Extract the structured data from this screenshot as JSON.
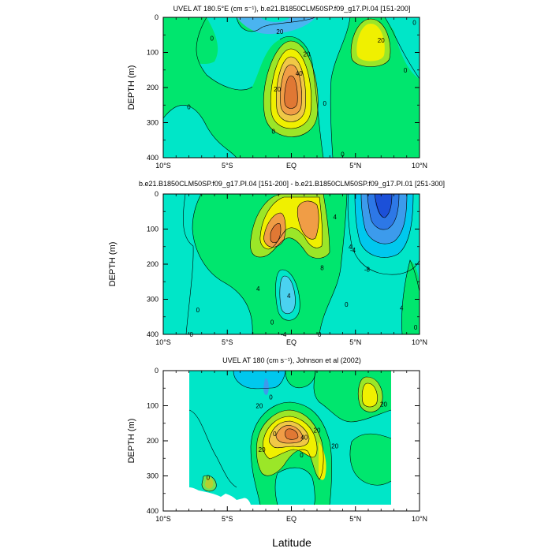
{
  "chart_data": [
    {
      "type": "contour",
      "title": "UVEL AT 180.5°E (cm s⁻¹), b.e21.B1850CLM50SP.f09_g17.PI.04 [151-200]",
      "xlabel": "",
      "ylabel": "DEPTH (m)",
      "xlim": [
        -10,
        10
      ],
      "ylim": [
        400,
        0
      ],
      "xticks": [
        -10,
        -5,
        0,
        5,
        10
      ],
      "xtick_labels": [
        "10°S",
        "5°S",
        "EQ",
        "5°N",
        "10°N"
      ],
      "yticks": [
        0,
        100,
        200,
        300,
        400
      ],
      "ytick_labels": [
        "0",
        "100",
        "200",
        "300",
        "400"
      ],
      "contour_labels": [
        {
          "text": "20",
          "x": -0.9,
          "y": 40
        },
        {
          "text": "0",
          "x": -6.2,
          "y": 60
        },
        {
          "text": "20",
          "x": 7.0,
          "y": 65
        },
        {
          "text": "20",
          "x": 1.2,
          "y": 105
        },
        {
          "text": "40",
          "x": 0.6,
          "y": 160
        },
        {
          "text": "20",
          "x": -1.1,
          "y": 205
        },
        {
          "text": "0",
          "x": 8.9,
          "y": 150
        },
        {
          "text": "0",
          "x": -8.0,
          "y": 255
        },
        {
          "text": "0",
          "x": -1.4,
          "y": 325
        },
        {
          "text": "0",
          "x": 2.6,
          "y": 245
        },
        {
          "text": "0",
          "x": 4.0,
          "y": 390
        },
        {
          "text": "0",
          "x": 9.6,
          "y": 15
        }
      ]
    },
    {
      "type": "contour",
      "title": "b.e21.B1850CLM50SP.f09_g17.PI.04 [151-200] - b.e21.B1850CLM50SP.f09_g17.PI.01 [251-300]",
      "xlabel": "",
      "ylabel": "DEPTH (m)",
      "xlim": [
        -10,
        10
      ],
      "ylim": [
        400,
        0
      ],
      "xticks": [
        -10,
        -5,
        0,
        5,
        10
      ],
      "xtick_labels": [
        "10°S",
        "5°S",
        "EQ",
        "5°N",
        "10°N"
      ],
      "yticks": [
        0,
        100,
        200,
        300,
        400
      ],
      "ytick_labels": [
        "0",
        "100",
        "200",
        "300",
        "400"
      ],
      "contour_labels": [
        {
          "text": "4",
          "x": 3.4,
          "y": 65
        },
        {
          "text": "8",
          "x": 2.4,
          "y": 210
        },
        {
          "text": "4",
          "x": 4.6,
          "y": 150
        },
        {
          "text": "-4",
          "x": 4.8,
          "y": 160
        },
        {
          "text": "-8",
          "x": 5.9,
          "y": 215
        },
        {
          "text": "4",
          "x": -2.6,
          "y": 270
        },
        {
          "text": "4",
          "x": -0.2,
          "y": 290
        },
        {
          "text": "0",
          "x": -7.3,
          "y": 330
        },
        {
          "text": "0",
          "x": -1.5,
          "y": 365
        },
        {
          "text": "-4",
          "x": -0.6,
          "y": 510
        },
        {
          "text": "0",
          "x": 2.2,
          "y": 490
        },
        {
          "text": "0",
          "x": 4.3,
          "y": 315
        },
        {
          "text": "4",
          "x": 8.6,
          "y": 325
        },
        {
          "text": "0",
          "x": -7.8,
          "y": 420
        },
        {
          "text": "0",
          "x": 9.7,
          "y": 380
        }
      ]
    },
    {
      "type": "contour",
      "title": "UVEL AT 180 (cm s⁻¹), Johnson et al (2002)",
      "xlabel": "Latitude",
      "ylabel": "DEPTH (m)",
      "xlim": [
        -10,
        10
      ],
      "ylim": [
        400,
        0
      ],
      "xticks": [
        -10,
        -5,
        0,
        5,
        10
      ],
      "xtick_labels": [
        "10°S",
        "5°S",
        "EQ",
        "5°N",
        "10°N"
      ],
      "yticks": [
        0,
        100,
        200,
        300,
        400
      ],
      "ytick_labels": [
        "0",
        "100",
        "200",
        "300",
        "400"
      ],
      "contour_labels": [
        {
          "text": "0",
          "x": -1.6,
          "y": 75
        },
        {
          "text": "20",
          "x": -2.5,
          "y": 100
        },
        {
          "text": "20",
          "x": 7.2,
          "y": 95
        },
        {
          "text": "40",
          "x": 1.0,
          "y": 190
        },
        {
          "text": "20",
          "x": 2.0,
          "y": 170
        },
        {
          "text": "20",
          "x": -2.3,
          "y": 225
        },
        {
          "text": "20",
          "x": 3.4,
          "y": 215
        },
        {
          "text": "0",
          "x": 0.8,
          "y": 240
        },
        {
          "text": "0",
          "x": -1.3,
          "y": 180
        },
        {
          "text": "0",
          "x": -6.5,
          "y": 305
        }
      ]
    }
  ]
}
